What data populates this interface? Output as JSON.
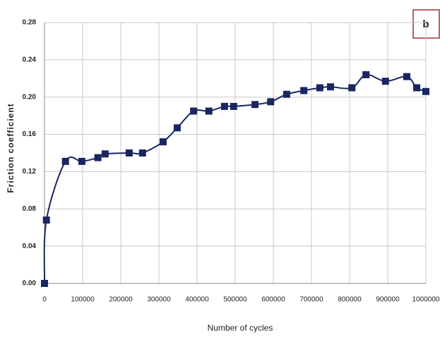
{
  "chart_data": {
    "type": "line",
    "y_label": "Friction coefficient",
    "x_label": "Number of cycles",
    "annotation": "b",
    "color": "#1a2660",
    "grid": true,
    "x": [
      0,
      5000,
      55000,
      98000,
      140000,
      159000,
      222000,
      257000,
      311000,
      348000,
      391000,
      431000,
      472000,
      496000,
      552000,
      593000,
      635000,
      680000,
      722000,
      750000,
      806000,
      843000,
      894000,
      950000,
      976000,
      1000000
    ],
    "values": [
      0.0,
      0.068,
      0.131,
      0.131,
      0.135,
      0.139,
      0.14,
      0.14,
      0.152,
      0.167,
      0.185,
      0.185,
      0.19,
      0.19,
      0.192,
      0.195,
      0.203,
      0.207,
      0.21,
      0.211,
      0.21,
      0.224,
      0.217,
      0.222,
      0.21,
      0.206
    ],
    "xlim": [
      0,
      1000000
    ],
    "xticks": [
      0,
      100000,
      200000,
      300000,
      400000,
      500000,
      600000,
      700000,
      800000,
      900000,
      1000000
    ],
    "ylim": [
      0,
      0.28
    ],
    "yticks": [
      {
        "value": 0,
        "label": "0.00"
      },
      0.04,
      0.08,
      0.12,
      0.16,
      {
        "value": 0.2,
        "label": "0.20"
      },
      0.24,
      0.28
    ]
  }
}
